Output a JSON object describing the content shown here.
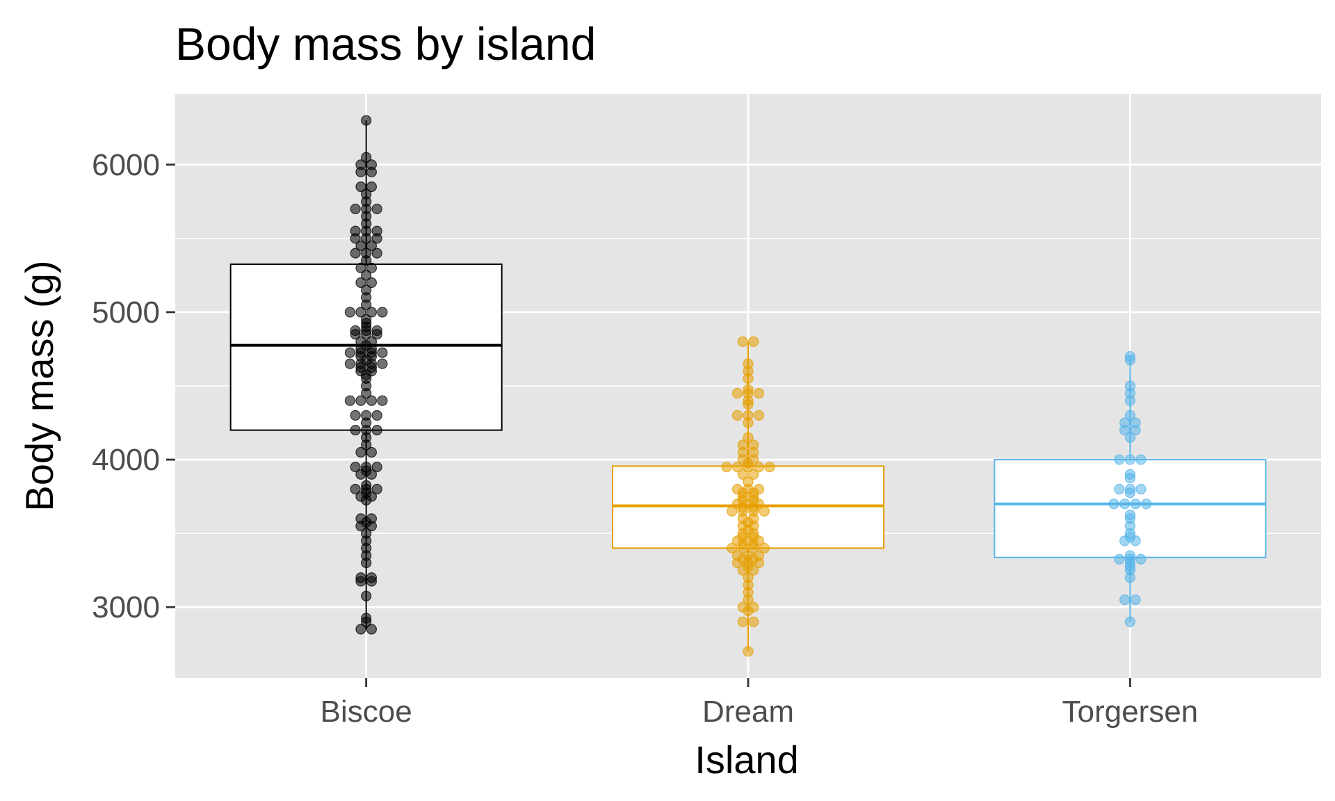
{
  "chart_data": {
    "type": "box",
    "title": "Body mass by island",
    "xlabel": "Island",
    "ylabel": "Body mass (g)",
    "ylim": [
      2520,
      6480
    ],
    "yticks": [
      3000,
      4000,
      5000,
      6000
    ],
    "ytick_labels": [
      "3000",
      "4000",
      "5000",
      "6000"
    ],
    "grid": true,
    "legend": "none",
    "categories": [
      "Biscoe",
      "Dream",
      "Torgersen"
    ],
    "series": [
      {
        "category": "Biscoe",
        "color": "#000000",
        "box": {
          "min": 2850,
          "q1": 4200,
          "median": 4775,
          "q3": 5325,
          "max": 6300
        },
        "points": [
          2850,
          2850,
          2900,
          2925,
          3075,
          3175,
          3175,
          3200,
          3200,
          3300,
          3350,
          3400,
          3450,
          3500,
          3550,
          3550,
          3575,
          3600,
          3600,
          3725,
          3750,
          3750,
          3775,
          3800,
          3800,
          3800,
          3825,
          3900,
          3900,
          3925,
          3950,
          3950,
          3950,
          4050,
          4050,
          4100,
          4150,
          4200,
          4200,
          4200,
          4250,
          4300,
          4300,
          4300,
          4400,
          4400,
          4400,
          4400,
          4450,
          4500,
          4550,
          4575,
          4600,
          4600,
          4625,
          4625,
          4650,
          4650,
          4650,
          4650,
          4675,
          4700,
          4700,
          4725,
          4725,
          4725,
          4725,
          4750,
          4750,
          4775,
          4800,
          4800,
          4850,
          4850,
          4850,
          4875,
          4875,
          4875,
          4900,
          4925,
          4950,
          5000,
          5000,
          5000,
          5000,
          5050,
          5100,
          5150,
          5200,
          5200,
          5250,
          5300,
          5300,
          5350,
          5400,
          5400,
          5400,
          5450,
          5450,
          5500,
          5500,
          5500,
          5550,
          5550,
          5550,
          5600,
          5650,
          5700,
          5700,
          5700,
          5750,
          5800,
          5850,
          5850,
          5950,
          5950,
          6000,
          6000,
          6050,
          6300
        ]
      },
      {
        "category": "Dream",
        "color": "#E69F00",
        "box": {
          "min": 2700,
          "q1": 3400,
          "median": 3687,
          "q3": 3956,
          "max": 4800
        },
        "points": [
          2700,
          2900,
          2900,
          2975,
          3000,
          3000,
          3050,
          3100,
          3150,
          3200,
          3250,
          3250,
          3275,
          3300,
          3300,
          3300,
          3325,
          3325,
          3350,
          3350,
          3350,
          3400,
          3400,
          3400,
          3400,
          3425,
          3425,
          3450,
          3450,
          3450,
          3475,
          3475,
          3500,
          3500,
          3525,
          3550,
          3550,
          3575,
          3600,
          3600,
          3650,
          3650,
          3650,
          3650,
          3675,
          3675,
          3700,
          3700,
          3700,
          3725,
          3725,
          3750,
          3750,
          3775,
          3775,
          3800,
          3800,
          3800,
          3850,
          3900,
          3900,
          3950,
          3950,
          3950,
          3950,
          3950,
          3975,
          4000,
          4000,
          4050,
          4050,
          4100,
          4100,
          4150,
          4250,
          4300,
          4300,
          4300,
          4375,
          4400,
          4450,
          4450,
          4450,
          4475,
          4550,
          4600,
          4650,
          4800,
          4800
        ]
      },
      {
        "category": "Torgersen",
        "color": "#56B4E9",
        "box": {
          "min": 2900,
          "q1": 3337,
          "median": 3700,
          "q3": 4000,
          "max": 4700
        },
        "points": [
          2900,
          3050,
          3050,
          3200,
          3250,
          3275,
          3300,
          3325,
          3325,
          3325,
          3350,
          3450,
          3450,
          3475,
          3500,
          3550,
          3600,
          3625,
          3700,
          3700,
          3700,
          3700,
          3775,
          3800,
          3800,
          3800,
          3875,
          3900,
          4000,
          4000,
          4000,
          4150,
          4200,
          4200,
          4250,
          4250,
          4300,
          4400,
          4450,
          4500,
          4675,
          4700
        ]
      }
    ]
  }
}
